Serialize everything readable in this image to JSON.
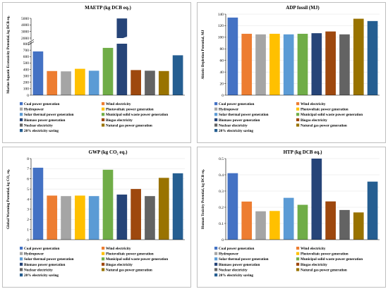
{
  "colors": [
    "#4472c4",
    "#ed7d31",
    "#a5a5a5",
    "#ffc000",
    "#5b9bd5",
    "#70ad47",
    "#264478",
    "#9e480e",
    "#636363",
    "#997300",
    "#255e91"
  ],
  "legend": [
    "Coal power generation",
    "Wind electricity",
    "Hydropower",
    "Photovoltaic power generation",
    "Solar thermal power generation",
    "Municipal solid waste power generation",
    "Biomass power generation",
    "Biogas electricity",
    "Nuclear electricity",
    "Natural gas power generation",
    "20% electricity saving"
  ],
  "chart_data": [
    {
      "type": "bar",
      "title": "MAETP (kg DCB eq.)",
      "ylabel": "Marine Aquatic Ecotoxicity Potential, kg DCB eq.",
      "axis_break": true,
      "lower_ylim": [
        0,
        800
      ],
      "lower_ticks": [
        0,
        100,
        200,
        300,
        400,
        500,
        600,
        700,
        800
      ],
      "upper_ylim": [
        2000,
        5000
      ],
      "upper_ticks": [
        2000,
        3000,
        4000,
        5000
      ],
      "values": [
        680,
        375,
        370,
        410,
        380,
        735,
        4980,
        390,
        380,
        375,
        620
      ]
    },
    {
      "type": "bar",
      "title": "ADP fossil (MJ)",
      "ylabel": "Abiotic Depletion Potential, MJ",
      "ylim": [
        0,
        140
      ],
      "ticks": [
        0,
        20,
        40,
        60,
        80,
        100,
        120,
        140
      ],
      "values": [
        134,
        106,
        105,
        106,
        105,
        106,
        107,
        110,
        105,
        132,
        128
      ]
    },
    {
      "type": "bar",
      "title": "GWP (kg CO₂ eq.)",
      "ylabel": "Global Warming Potential, kg CO₂ eq.",
      "ylim": [
        0,
        8
      ],
      "ticks": [
        0,
        1,
        2,
        3,
        4,
        5,
        6,
        7,
        8
      ],
      "values": [
        7.1,
        4.35,
        4.3,
        4.35,
        4.3,
        6.9,
        4.45,
        5.0,
        4.3,
        6.1,
        6.55
      ]
    },
    {
      "type": "bar",
      "title": "HTP (kg DCB eq.)",
      "ylabel": "Human Toxicity Potential, kg DCB eq.",
      "ylim": [
        0,
        0.5
      ],
      "ticks": [
        0,
        0.1,
        0.2,
        0.3,
        0.4,
        0.5
      ],
      "values": [
        0.41,
        0.235,
        0.175,
        0.177,
        0.258,
        0.215,
        0.5,
        0.236,
        0.183,
        0.168,
        0.358
      ]
    }
  ]
}
